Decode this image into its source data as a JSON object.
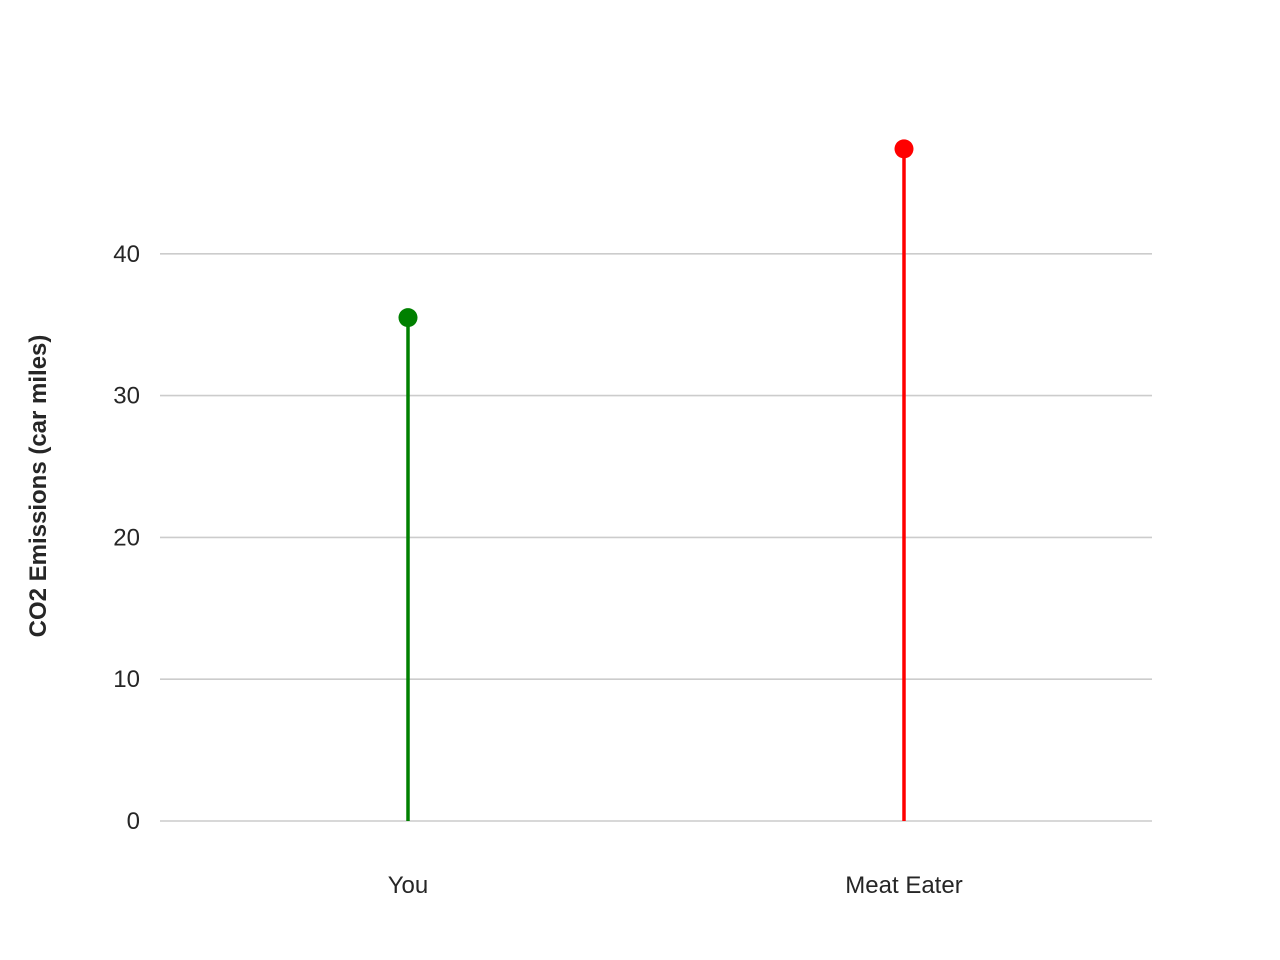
{
  "chart_data": {
    "type": "lollipop",
    "title": "",
    "xlabel": "",
    "ylabel": "CO2 Emissions (car miles)",
    "categories": [
      "You",
      "Meat Eater"
    ],
    "values": [
      35.5,
      47.4
    ],
    "colors": [
      "#008000",
      "#ff0000"
    ],
    "ylim": [
      0,
      48
    ],
    "yticks": [
      0,
      10,
      20,
      30,
      40
    ],
    "ytick_labels": [
      "0",
      "10",
      "20",
      "30",
      "40"
    ],
    "grid": "horizontal",
    "legend": "none"
  }
}
